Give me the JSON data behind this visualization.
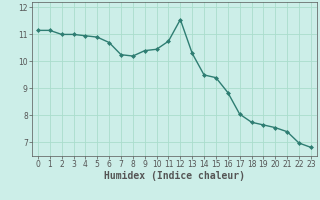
{
  "x": [
    0,
    1,
    2,
    3,
    4,
    5,
    6,
    7,
    8,
    9,
    10,
    11,
    12,
    13,
    14,
    15,
    16,
    17,
    18,
    19,
    20,
    21,
    22,
    23
  ],
  "y": [
    11.15,
    11.15,
    11.0,
    11.0,
    10.95,
    10.9,
    10.7,
    10.25,
    10.2,
    10.4,
    10.45,
    10.75,
    11.55,
    10.3,
    9.5,
    9.4,
    8.85,
    8.05,
    7.75,
    7.65,
    7.55,
    7.4,
    6.98,
    6.82
  ],
  "line_color": "#2e7d72",
  "marker": "D",
  "marker_size": 2.0,
  "linewidth": 1.0,
  "background_color": "#cceee8",
  "grid_color": "#aaddcc",
  "xlabel": "Humidex (Indice chaleur)",
  "xlabel_fontsize": 7,
  "ylim": [
    6.5,
    12.2
  ],
  "xlim": [
    -0.5,
    23.5
  ],
  "yticks": [
    7,
    8,
    9,
    10,
    11,
    12
  ],
  "xticks": [
    0,
    1,
    2,
    3,
    4,
    5,
    6,
    7,
    8,
    9,
    10,
    11,
    12,
    13,
    14,
    15,
    16,
    17,
    18,
    19,
    20,
    21,
    22,
    23
  ],
  "tick_fontsize": 5.5,
  "spine_color": "#555555"
}
